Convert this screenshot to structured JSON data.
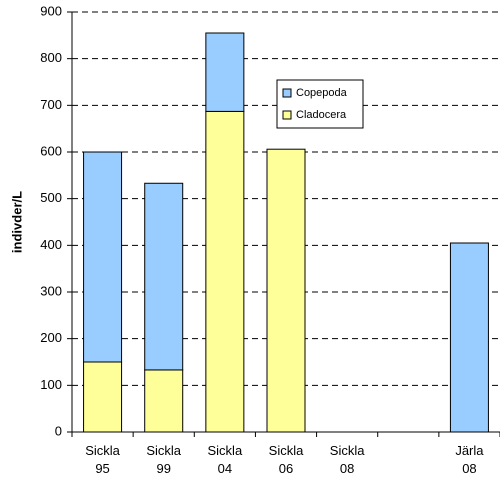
{
  "chart_data": {
    "type": "stacked-bar",
    "y_label": "indivder/L",
    "categories": [
      "Sickla 95",
      "Sickla 99",
      "Sickla 04",
      "Sickla 06",
      "Sickla 08",
      null,
      "Järla 08"
    ],
    "series": [
      {
        "name": "Cladocera",
        "color": "#ffff99",
        "values": [
          150,
          133,
          687,
          606,
          0,
          null,
          0
        ]
      },
      {
        "name": "Copepoda",
        "color": "#99ccff",
        "values": [
          450,
          400,
          168,
          0,
          0,
          null,
          405
        ]
      }
    ],
    "ylim": [
      0,
      900
    ],
    "yticks": [
      0,
      100,
      200,
      300,
      400,
      500,
      600,
      700,
      800,
      900
    ],
    "grid": true,
    "legend": "upper-center"
  }
}
